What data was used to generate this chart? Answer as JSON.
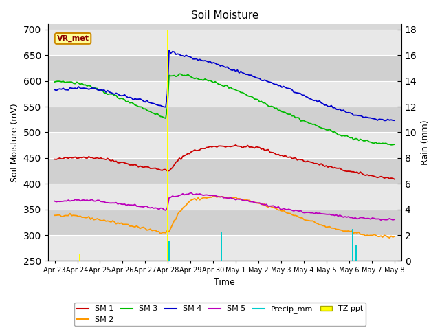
{
  "title": "Soil Moisture",
  "xlabel": "Time",
  "ylabel_left": "Soil Moisture (mV)",
  "ylabel_right": "Rain (mm)",
  "ylim_left": [
    250,
    710
  ],
  "ylim_right": [
    0,
    18.4
  ],
  "station_label": "VR_met",
  "x_tick_labels": [
    "Apr 23",
    "Apr 24",
    "Apr 25",
    "Apr 26",
    "Apr 27",
    "Apr 28",
    "Apr 29",
    "Apr 30",
    "May 1",
    "May 2",
    "May 3",
    "May 4",
    "May 5",
    "May 6",
    "May 7",
    "May 8"
  ],
  "sm1_color": "#cc0000",
  "sm2_color": "#ff9900",
  "sm3_color": "#00bb00",
  "sm4_color": "#0000cc",
  "sm5_color": "#bb00bb",
  "precip_color": "#00cccc",
  "tzppt_color": "#ffff00",
  "grid_color": "#ffffff",
  "bg_color": "#d8d8d8",
  "sm1_kx": [
    0,
    1,
    2,
    3,
    4,
    4.8,
    5.05,
    5.5,
    6,
    7,
    8,
    9,
    10,
    11,
    12,
    13,
    14,
    15
  ],
  "sm1_ky": [
    447,
    452,
    450,
    441,
    432,
    427,
    424,
    448,
    462,
    473,
    473,
    470,
    455,
    445,
    434,
    424,
    415,
    410
  ],
  "sm2_kx": [
    0,
    1,
    2,
    3,
    4,
    4.85,
    5.05,
    5.5,
    6,
    7,
    8,
    9,
    10,
    11,
    12,
    13,
    14,
    15
  ],
  "sm2_ky": [
    338,
    337,
    330,
    322,
    312,
    305,
    308,
    345,
    368,
    375,
    372,
    362,
    348,
    332,
    316,
    306,
    299,
    296
  ],
  "sm3_kx": [
    0,
    1,
    2,
    3,
    4,
    4.85,
    4.95,
    5.05,
    5.5,
    6,
    7,
    8,
    9,
    10,
    11,
    12,
    13,
    14,
    15
  ],
  "sm3_ky": [
    600,
    596,
    582,
    565,
    545,
    528,
    527,
    610,
    612,
    608,
    598,
    583,
    562,
    542,
    522,
    505,
    490,
    480,
    476
  ],
  "sm4_kx": [
    0,
    1,
    2,
    3,
    4,
    4.85,
    4.95,
    5.05,
    5.5,
    6,
    7,
    8,
    9,
    10,
    11,
    12,
    13,
    14,
    15
  ],
  "sm4_ky": [
    582,
    586,
    583,
    572,
    560,
    550,
    548,
    658,
    652,
    645,
    635,
    620,
    605,
    590,
    572,
    552,
    537,
    526,
    523
  ],
  "sm5_kx": [
    0,
    1,
    2,
    3,
    4,
    4.85,
    4.95,
    5.05,
    5.5,
    6,
    7,
    8,
    9,
    10,
    11,
    12,
    13,
    14,
    15
  ],
  "sm5_ky": [
    365,
    368,
    366,
    360,
    355,
    350,
    347,
    372,
    378,
    380,
    376,
    370,
    362,
    352,
    345,
    340,
    335,
    332,
    330
  ],
  "tz_days": [
    1.1,
    5.0,
    7.35
  ],
  "tz_vals": [
    0.5,
    18.0,
    0.5
  ],
  "precip_days": [
    5.05,
    7.35,
    13.15,
    13.3
  ],
  "precip_vals": [
    1.5,
    2.2,
    2.5,
    1.2
  ]
}
